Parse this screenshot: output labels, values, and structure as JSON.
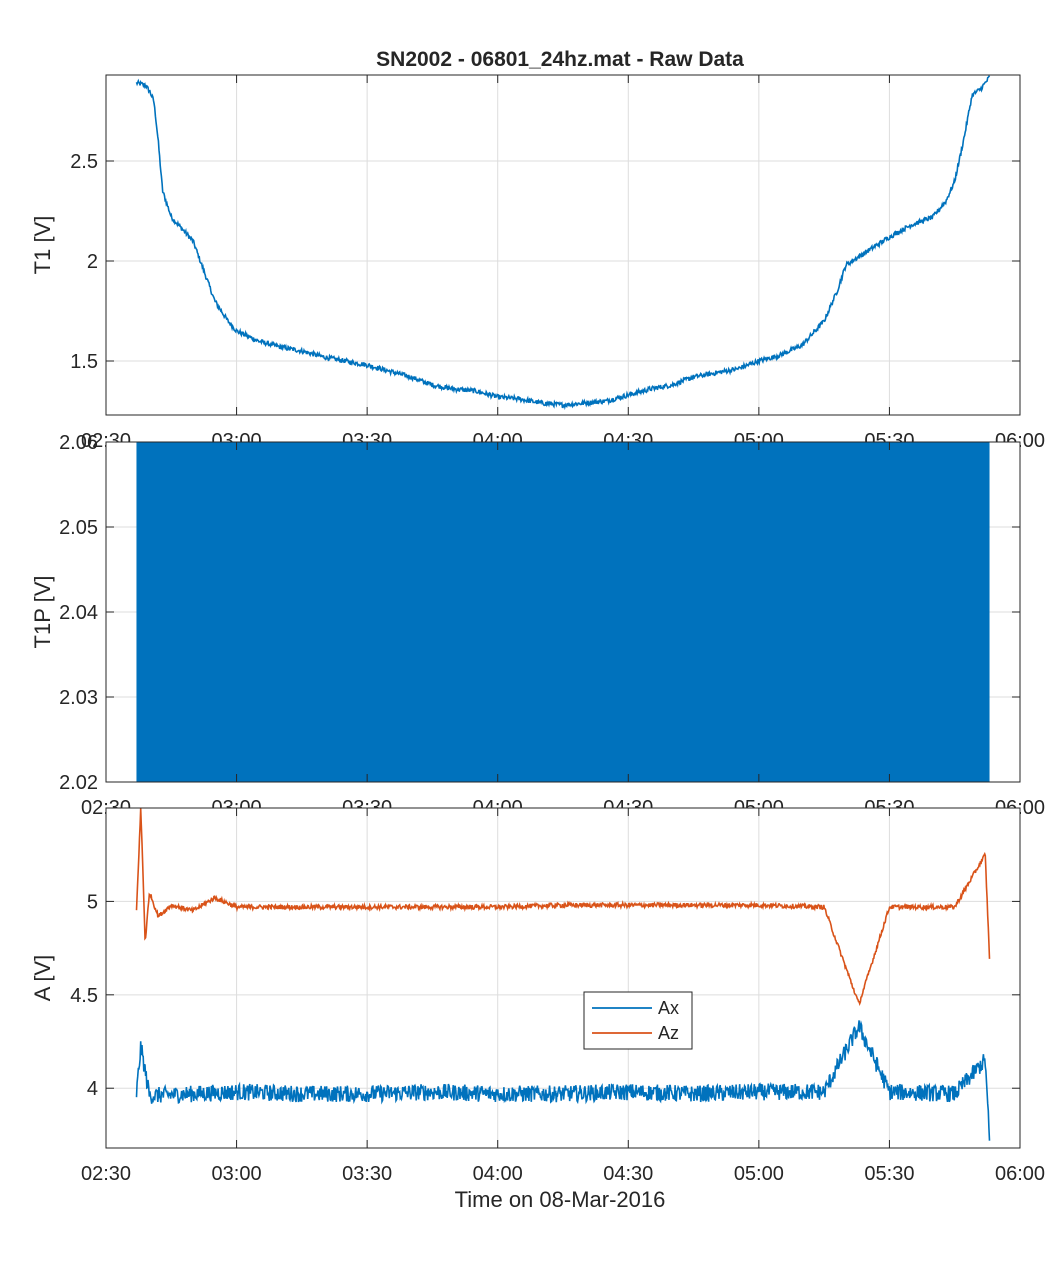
{
  "figure": {
    "title": "SN2002 - 06801_24hz.mat - Raw Data",
    "xlabel": "Time on 08-Mar-2016"
  },
  "colors": {
    "blue": "#0072BD",
    "orange": "#D95319",
    "grid": "#dddddd",
    "axis": "#262626"
  },
  "chart_data": [
    {
      "type": "line",
      "title": "SN2002 - 06801_24hz.mat - Raw Data",
      "ylabel": "T1 [V]",
      "xlabel": "",
      "xlim": [
        "02:30",
        "06:00"
      ],
      "ylim": [
        1.23,
        2.93
      ],
      "xticks": [
        "02:30",
        "03:00",
        "03:30",
        "04:00",
        "04:30",
        "05:00",
        "05:30",
        "06:00"
      ],
      "yticks": [
        1.5,
        2,
        2.5
      ],
      "grid": true,
      "series": [
        {
          "color": "#0072BD",
          "x": [
            "02:37",
            "02:39",
            "02:40",
            "02:41",
            "02:42",
            "02:43",
            "02:45",
            "02:50",
            "02:55",
            "02:58",
            "03:00",
            "03:05",
            "03:10",
            "03:15",
            "03:20",
            "03:25",
            "03:30",
            "03:35",
            "03:40",
            "03:45",
            "03:50",
            "03:55",
            "04:00",
            "04:05",
            "04:10",
            "04:15",
            "04:20",
            "04:25",
            "04:30",
            "04:35",
            "04:40",
            "04:45",
            "04:50",
            "04:55",
            "05:00",
            "05:05",
            "05:10",
            "05:15",
            "05:18",
            "05:20",
            "05:25",
            "05:30",
            "05:35",
            "05:40",
            "05:43",
            "05:45",
            "05:47",
            "05:49",
            "05:51",
            "05:53"
          ],
          "values": [
            2.89,
            2.88,
            2.85,
            2.8,
            2.6,
            2.35,
            2.22,
            2.1,
            1.8,
            1.7,
            1.65,
            1.6,
            1.57,
            1.55,
            1.52,
            1.5,
            1.48,
            1.45,
            1.42,
            1.38,
            1.36,
            1.35,
            1.32,
            1.31,
            1.29,
            1.28,
            1.29,
            1.3,
            1.33,
            1.36,
            1.38,
            1.42,
            1.44,
            1.46,
            1.5,
            1.53,
            1.58,
            1.7,
            1.85,
            1.98,
            2.05,
            2.12,
            2.18,
            2.22,
            2.3,
            2.4,
            2.6,
            2.83,
            2.86,
            2.92
          ]
        }
      ]
    },
    {
      "type": "area",
      "title": "",
      "ylabel": "T1P [V]",
      "xlabel": "",
      "xlim": [
        "02:30",
        "06:00"
      ],
      "ylim": [
        2.02,
        2.06
      ],
      "xticks": [
        "02:30",
        "03:00",
        "03:30",
        "04:00",
        "04:30",
        "05:00",
        "05:30",
        "06:00"
      ],
      "yticks": [
        2.02,
        2.03,
        2.04,
        2.05,
        2.06
      ],
      "grid": true,
      "series": [
        {
          "color": "#0072BD",
          "x": [
            "02:37",
            "05:53"
          ],
          "y_min": 2.02,
          "y_max": 2.06
        }
      ]
    },
    {
      "type": "line",
      "title": "",
      "ylabel": "A [V]",
      "xlabel": "Time on 08-Mar-2016",
      "xlim": [
        "02:30",
        "06:00"
      ],
      "ylim": [
        3.68,
        5.5
      ],
      "xticks": [
        "02:30",
        "03:00",
        "03:30",
        "04:00",
        "04:30",
        "05:00",
        "05:30",
        "06:00"
      ],
      "yticks": [
        4,
        4.5,
        5
      ],
      "grid": true,
      "legend": {
        "position": "center",
        "entries": [
          "Ax",
          "Az"
        ]
      },
      "series": [
        {
          "name": "Ax",
          "color": "#0072BD",
          "x": [
            "02:37",
            "02:38",
            "02:40",
            "02:50",
            "03:00",
            "03:15",
            "03:30",
            "03:45",
            "04:00",
            "04:15",
            "04:30",
            "04:45",
            "05:00",
            "05:15",
            "05:23",
            "05:30",
            "05:45",
            "05:52",
            "05:53"
          ],
          "values": [
            3.97,
            4.22,
            3.96,
            3.97,
            3.98,
            3.97,
            3.97,
            3.98,
            3.97,
            3.97,
            3.98,
            3.97,
            3.98,
            3.98,
            4.33,
            3.98,
            3.97,
            4.15,
            3.72
          ]
        },
        {
          "name": "Az",
          "color": "#D95319",
          "x": [
            "02:37",
            "02:38",
            "02:39",
            "02:40",
            "02:42",
            "02:45",
            "02:50",
            "02:55",
            "03:00",
            "03:15",
            "03:30",
            "03:45",
            "04:00",
            "04:15",
            "04:30",
            "04:45",
            "05:00",
            "05:15",
            "05:23",
            "05:30",
            "05:45",
            "05:52",
            "05:53"
          ],
          "values": [
            4.95,
            5.5,
            4.78,
            5.05,
            4.92,
            4.98,
            4.95,
            5.02,
            4.97,
            4.97,
            4.97,
            4.97,
            4.97,
            4.98,
            4.98,
            4.98,
            4.98,
            4.97,
            4.45,
            4.97,
            4.97,
            5.25,
            4.7
          ]
        }
      ]
    }
  ]
}
